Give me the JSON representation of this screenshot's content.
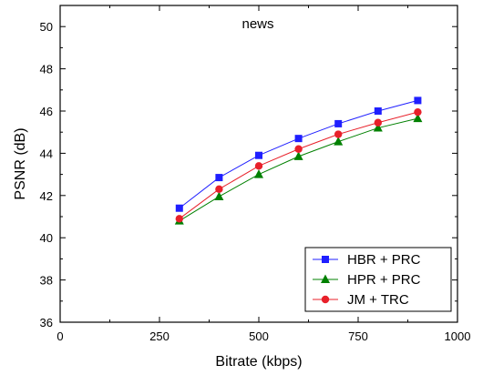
{
  "chart_data": {
    "type": "line",
    "title": "news",
    "xlabel": "Bitrate (kbps)",
    "ylabel": "PSNR (dB)",
    "xlim": [
      0,
      1000
    ],
    "ylim": [
      36,
      51
    ],
    "x_ticks": [
      0,
      250,
      500,
      750,
      1000
    ],
    "y_ticks": [
      36,
      38,
      40,
      42,
      44,
      46,
      48,
      50
    ],
    "x": [
      300,
      400,
      500,
      600,
      700,
      800,
      900
    ],
    "series": [
      {
        "name": "HBR + PRC",
        "marker": "square",
        "color": "#1f1fff",
        "values": [
          41.4,
          42.85,
          43.9,
          44.7,
          45.4,
          46.0,
          46.5
        ]
      },
      {
        "name": "HPR + PRC",
        "marker": "triangle",
        "color": "#008000",
        "values": [
          40.8,
          41.95,
          43.0,
          43.85,
          44.55,
          45.2,
          45.65
        ]
      },
      {
        "name": "JM + TRC",
        "marker": "circle",
        "color": "#e8202a",
        "values": [
          40.9,
          42.3,
          43.4,
          44.2,
          44.9,
          45.45,
          45.95
        ]
      }
    ],
    "legend_position": "bottom-right",
    "grid": false
  }
}
